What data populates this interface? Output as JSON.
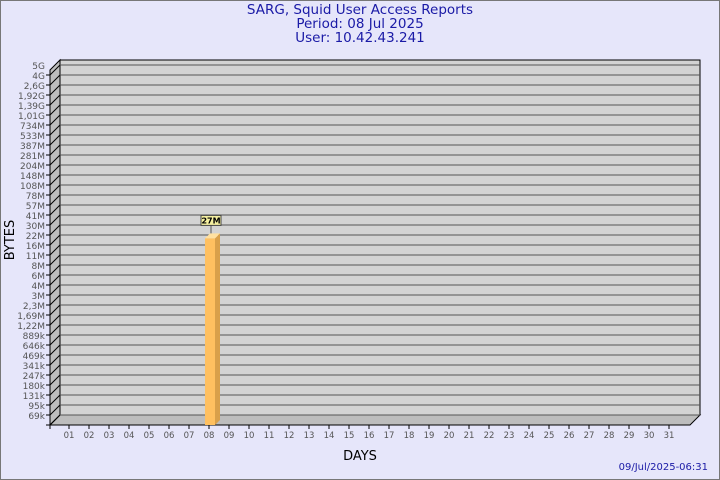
{
  "header": {
    "title": "SARG, Squid User Access Reports",
    "period": "Period: 08 Jul 2025",
    "user": "User: 10.42.43.241"
  },
  "footer": {
    "timestamp": "09/Jul/2025-06:31"
  },
  "chart_data": {
    "type": "bar",
    "xlabel": "DAYS",
    "ylabel": "BYTES",
    "categories": [
      "01",
      "02",
      "03",
      "04",
      "05",
      "06",
      "07",
      "08",
      "09",
      "10",
      "11",
      "12",
      "13",
      "14",
      "15",
      "16",
      "17",
      "18",
      "19",
      "20",
      "21",
      "22",
      "23",
      "24",
      "25",
      "26",
      "27",
      "28",
      "29",
      "30",
      "31"
    ],
    "series": [
      {
        "values": [
          0,
          0,
          0,
          0,
          0,
          0,
          0,
          27000000,
          0,
          0,
          0,
          0,
          0,
          0,
          0,
          0,
          0,
          0,
          0,
          0,
          0,
          0,
          0,
          0,
          0,
          0,
          0,
          0,
          0,
          0,
          0
        ]
      }
    ],
    "data_labels": {
      "08": "27M"
    },
    "y_tick_labels": [
      "5G",
      "4G",
      "2,6G",
      "1,92G",
      "1,39G",
      "1,01G",
      "734M",
      "533M",
      "387M",
      "281M",
      "204M",
      "148M",
      "108M",
      "78M",
      "57M",
      "41M",
      "30M",
      "22M",
      "16M",
      "11M",
      "8M",
      "6M",
      "4M",
      "3M",
      "2,3M",
      "1,69M",
      "1,22M",
      "889k",
      "646k",
      "469k",
      "341k",
      "247k",
      "180k",
      "131k",
      "95k",
      "69k"
    ],
    "y_tick_values": [
      5000000000,
      4000000000,
      2600000000,
      1920000000,
      1390000000,
      1010000000,
      734000000,
      533000000,
      387000000,
      281000000,
      204000000,
      148000000,
      108000000,
      78000000,
      57000000,
      41000000,
      30000000,
      22000000,
      16000000,
      11000000,
      8000000,
      6000000,
      4000000,
      3000000,
      2300000,
      1690000,
      1220000,
      889000,
      646000,
      469000,
      341000,
      247000,
      180000,
      131000,
      95000,
      69000
    ],
    "y_scale": "log-like",
    "grid": true,
    "colors": {
      "bar": "#ffc060",
      "bar_side": "#d9a04a",
      "plot_bg": "#d3d3d3",
      "grid": "#555555",
      "title": "#1a1aa6"
    }
  }
}
